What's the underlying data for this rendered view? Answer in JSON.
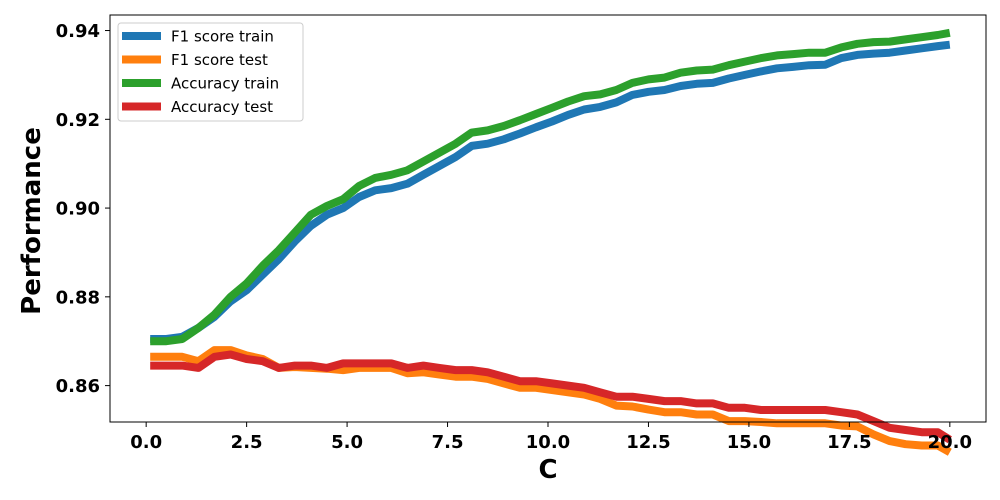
{
  "chart_data": {
    "type": "line",
    "title": "",
    "xlabel": "C",
    "ylabel": "Performance",
    "xlim": [
      -0.9,
      20.9
    ],
    "ylim": [
      0.8518,
      0.9435
    ],
    "xticks": [
      0.0,
      2.5,
      5.0,
      7.5,
      10.0,
      12.5,
      15.0,
      17.5,
      20.0
    ],
    "xtick_labels": [
      "0.0",
      "2.5",
      "5.0",
      "7.5",
      "10.0",
      "12.5",
      "15.0",
      "17.5",
      "20.0"
    ],
    "yticks": [
      0.86,
      0.88,
      0.9,
      0.92,
      0.94
    ],
    "ytick_labels": [
      "0.86",
      "0.88",
      "0.90",
      "0.92",
      "0.94"
    ],
    "grid": false,
    "legend_position": "upper-left",
    "x": [
      0.1,
      0.5,
      0.9,
      1.3,
      1.7,
      2.1,
      2.5,
      2.9,
      3.3,
      3.7,
      4.1,
      4.5,
      4.9,
      5.3,
      5.7,
      6.1,
      6.5,
      6.9,
      7.3,
      7.7,
      8.1,
      8.5,
      8.9,
      9.3,
      9.7,
      10.1,
      10.5,
      10.9,
      11.3,
      11.7,
      12.1,
      12.5,
      12.9,
      13.3,
      13.7,
      14.1,
      14.5,
      14.9,
      15.3,
      15.7,
      16.1,
      16.5,
      16.9,
      17.3,
      17.7,
      18.1,
      18.5,
      18.9,
      19.3,
      19.7,
      20.0
    ],
    "series": [
      {
        "name": "F1 score train",
        "color": "#1f77b4",
        "values": [
          0.8705,
          0.8705,
          0.871,
          0.873,
          0.8755,
          0.879,
          0.8815,
          0.885,
          0.8885,
          0.8925,
          0.896,
          0.8985,
          0.9,
          0.9025,
          0.904,
          0.9045,
          0.9055,
          0.9075,
          0.9095,
          0.9115,
          0.914,
          0.9145,
          0.9155,
          0.9168,
          0.9182,
          0.9195,
          0.921,
          0.9222,
          0.9228,
          0.9238,
          0.9255,
          0.9262,
          0.9266,
          0.9275,
          0.928,
          0.9282,
          0.9292,
          0.93,
          0.9308,
          0.9315,
          0.9318,
          0.9322,
          0.9323,
          0.9338,
          0.9345,
          0.9348,
          0.935,
          0.9355,
          0.936,
          0.9365,
          0.9368
        ]
      },
      {
        "name": "F1 score test",
        "color": "#ff7f0e",
        "values": [
          0.8665,
          0.8665,
          0.8665,
          0.8655,
          0.868,
          0.868,
          0.8668,
          0.866,
          0.864,
          0.8642,
          0.864,
          0.8638,
          0.8635,
          0.864,
          0.864,
          0.864,
          0.8628,
          0.863,
          0.8625,
          0.862,
          0.862,
          0.8615,
          0.8605,
          0.8595,
          0.8595,
          0.859,
          0.8585,
          0.858,
          0.857,
          0.8555,
          0.8553,
          0.8546,
          0.854,
          0.854,
          0.8535,
          0.8535,
          0.852,
          0.852,
          0.8518,
          0.8515,
          0.8515,
          0.8515,
          0.8515,
          0.851,
          0.8508,
          0.849,
          0.8475,
          0.8468,
          0.8465,
          0.8465,
          0.845
        ]
      },
      {
        "name": "Accuracy train",
        "color": "#2ca02c",
        "values": [
          0.87,
          0.87,
          0.8705,
          0.873,
          0.876,
          0.88,
          0.883,
          0.887,
          0.8905,
          0.8945,
          0.8985,
          0.9005,
          0.902,
          0.905,
          0.9068,
          0.9075,
          0.9085,
          0.9105,
          0.9125,
          0.9145,
          0.917,
          0.9175,
          0.9185,
          0.9198,
          0.9212,
          0.9226,
          0.924,
          0.9252,
          0.9256,
          0.9266,
          0.9282,
          0.929,
          0.9294,
          0.9305,
          0.931,
          0.9312,
          0.9322,
          0.933,
          0.9338,
          0.9344,
          0.9347,
          0.935,
          0.935,
          0.9362,
          0.937,
          0.9374,
          0.9375,
          0.938,
          0.9385,
          0.939,
          0.9395
        ]
      },
      {
        "name": "Accuracy test",
        "color": "#d62728",
        "values": [
          0.8645,
          0.8645,
          0.8645,
          0.864,
          0.8665,
          0.867,
          0.866,
          0.8655,
          0.864,
          0.8645,
          0.8645,
          0.864,
          0.865,
          0.865,
          0.865,
          0.865,
          0.864,
          0.8645,
          0.864,
          0.8635,
          0.8635,
          0.863,
          0.862,
          0.861,
          0.861,
          0.8605,
          0.86,
          0.8595,
          0.8585,
          0.8575,
          0.8575,
          0.857,
          0.8565,
          0.8565,
          0.856,
          0.856,
          0.855,
          0.855,
          0.8545,
          0.8545,
          0.8545,
          0.8545,
          0.8545,
          0.854,
          0.8535,
          0.852,
          0.8505,
          0.85,
          0.8495,
          0.8495,
          0.8478
        ]
      }
    ]
  }
}
